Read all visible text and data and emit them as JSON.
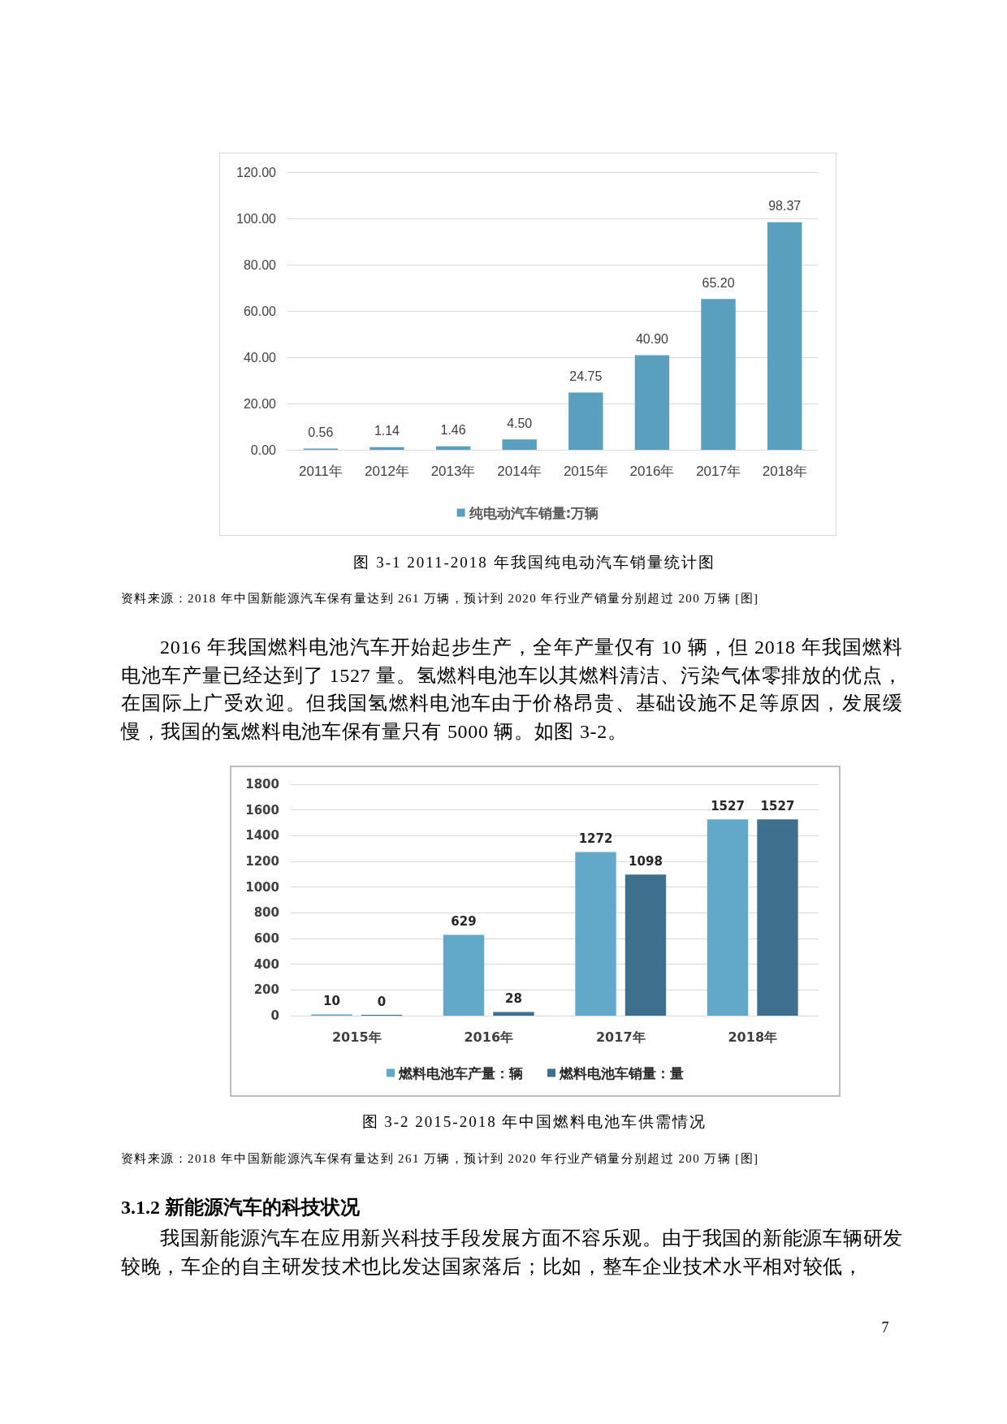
{
  "chart_data": [
    {
      "type": "bar",
      "title": "图 3-1  2011-2018 年我国纯电动汽车销量统计图",
      "annotations": [
        "资料来源：2018 年中国新能源汽车保有量达到 261 万辆，预计到 2020 年行业产销量分别超过 200 万辆 [图]",
        "2016 年我国燃料电池汽车开始起步生产，全年产量仅有 10 辆，但 2018 年我国燃料电池车产量已经达到了 1527 量。氢燃料电池车以其燃料清洁、污染气体零排放的优点，在国际上广受欢迎。但我国氢燃料电池车由于价格昂贵、基础设施不足等原因，发展缓慢，我国的氢燃料电池车保有量只有 5000 辆。如图 3-2。"
      ],
      "categories": [
        "2011年",
        "2012年",
        "2013年",
        "2014年",
        "2015年",
        "2016年",
        "2017年",
        "2018年"
      ],
      "series": [
        {
          "name": "纯电动汽车销量:万辆",
          "color": "#5b9fbf",
          "values": [
            0.56,
            1.14,
            1.46,
            4.5,
            24.75,
            40.9,
            65.2,
            98.37
          ],
          "value_labels": [
            "0.56",
            "1.14",
            "1.46",
            "4.50",
            "24.75",
            "40.90",
            "65.20",
            "98.37"
          ]
        }
      ],
      "ylim": [
        0,
        120
      ],
      "yticks": [
        {
          "value": 0,
          "label": "0.00"
        },
        {
          "value": 20,
          "label": "20.00"
        },
        {
          "value": 40,
          "label": "40.00"
        },
        {
          "value": 60,
          "label": "60.00"
        },
        {
          "value": 80,
          "label": "80.00"
        },
        {
          "value": 100,
          "label": "100.00"
        },
        {
          "value": 120,
          "label": "120.00"
        }
      ],
      "grid": "y",
      "legend": "bottom"
    },
    {
      "type": "bar",
      "title": "图 3-2  2015-2018 年中国燃料电池车供需情况",
      "annotations": [
        "资料来源：2018 年中国新能源汽车保有量达到 261 万辆，预计到 2020 年行业产销量分别超过 200 万辆 [图]",
        "3.1.2 新能源汽车的科技状况",
        "我国新能源汽车在应用新兴科技手段发展方面不容乐观。由于我国的新能源车辆研发较晚，车企的自主研发技术也比发达国家落后；比如，整车企业技术水平相对较低，",
        "7"
      ],
      "categories": [
        "2015年",
        "2016年",
        "2017年",
        "2018年"
      ],
      "series": [
        {
          "name": "燃料电池车产量：辆",
          "color": "#62a8c9",
          "values": [
            10,
            629,
            1272,
            1527
          ]
        },
        {
          "name": "燃料电池车销量：量",
          "color": "#3d6f8e",
          "values": [
            0,
            28,
            1098,
            1527
          ]
        }
      ],
      "ylim": [
        0,
        1800
      ],
      "yticks": [
        0,
        200,
        400,
        600,
        800,
        1000,
        1200,
        1400,
        1600,
        1800
      ],
      "grid": "y",
      "legend": "bottom",
      "data_labels": true
    }
  ]
}
